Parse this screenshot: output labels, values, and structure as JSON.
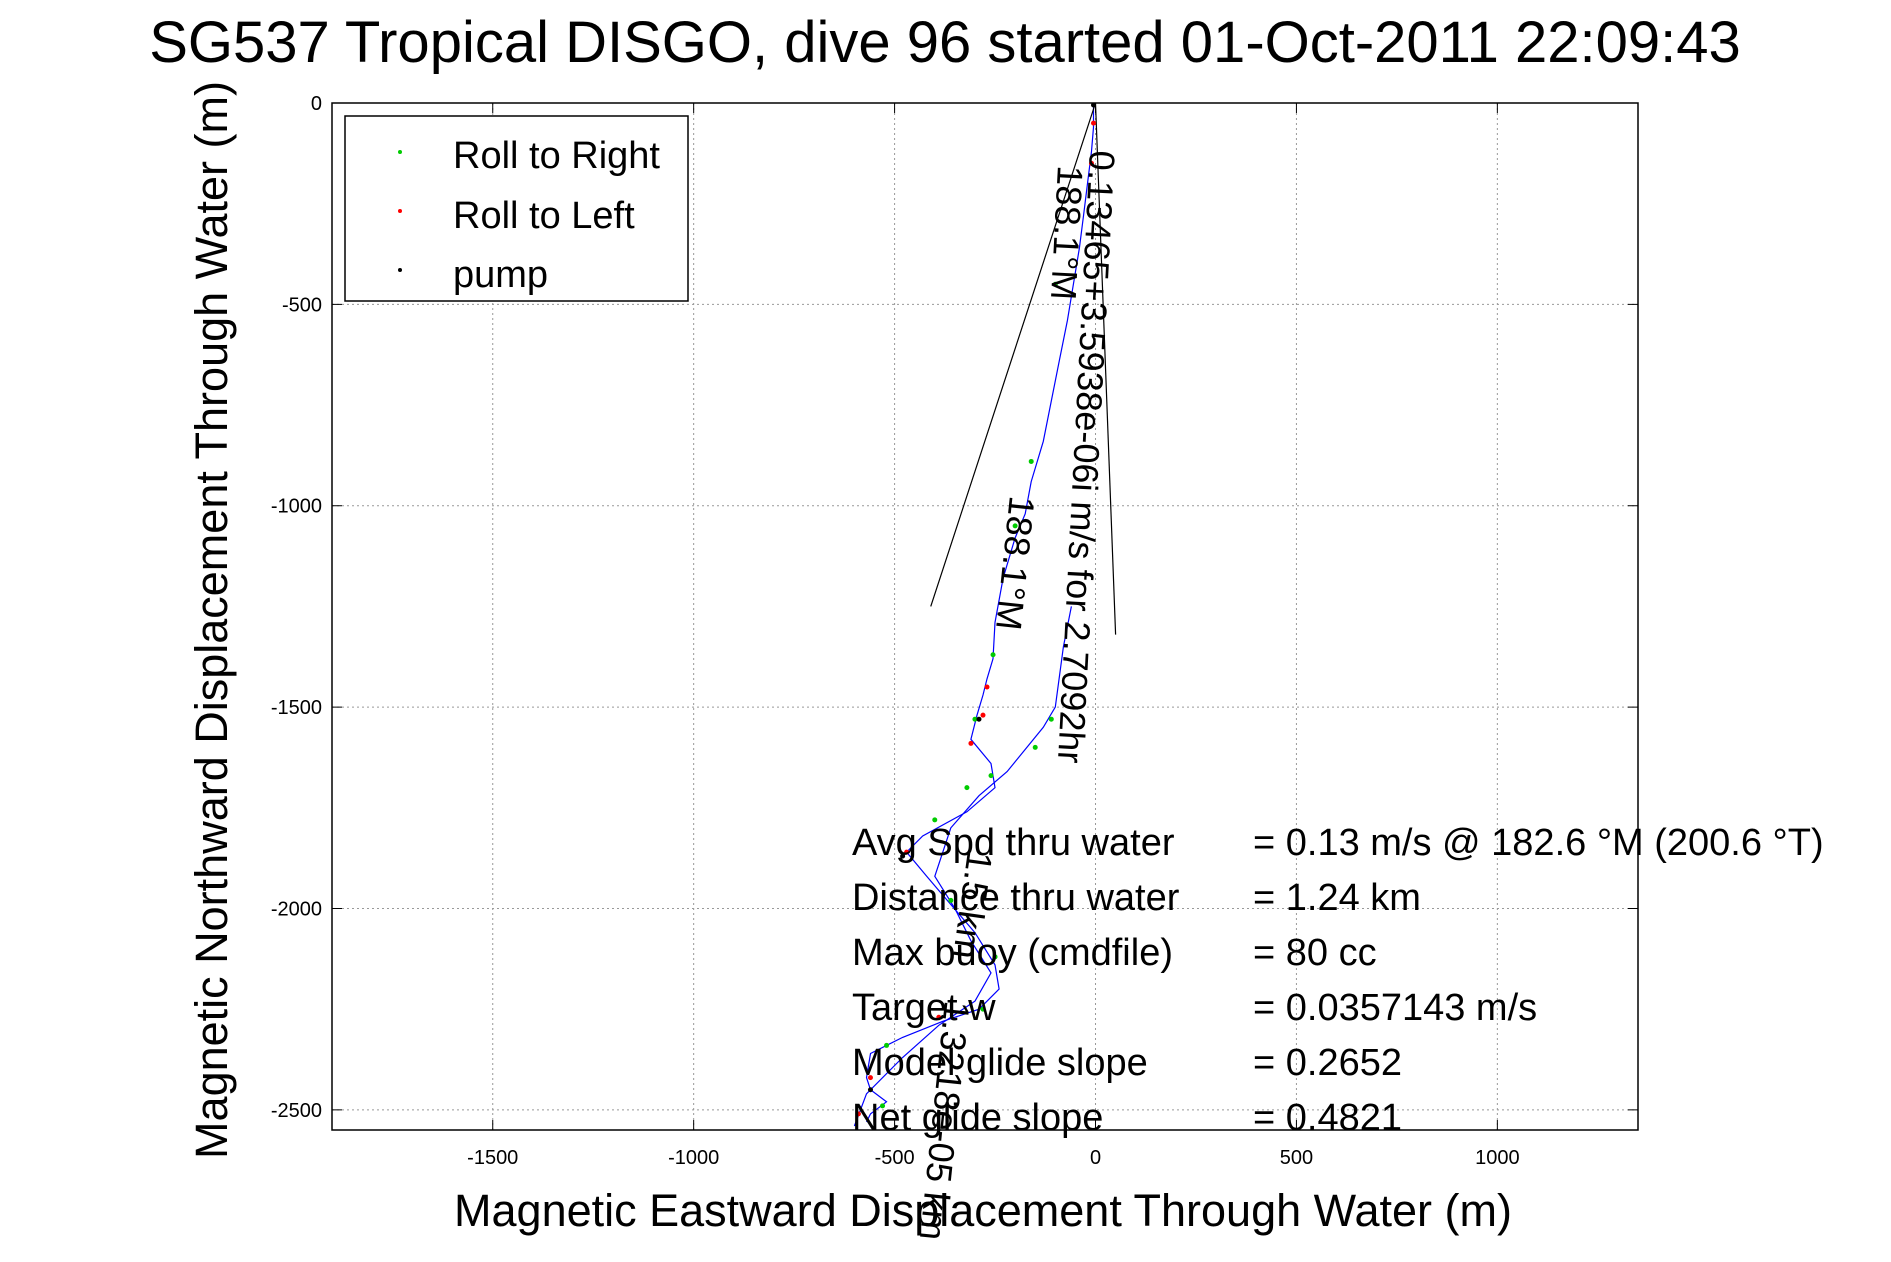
{
  "chart_data": {
    "type": "line",
    "title": "SG537 Tropical DISGO, dive 96 started 01-Oct-2011 22:09:43",
    "xlabel": "Magnetic Eastward Displacement Through Water (m)",
    "ylabel": "Magnetic Northward Displacement Through Water (m)",
    "xlim": [
      -1900,
      1350
    ],
    "ylim": [
      -2550,
      0
    ],
    "xticks": [
      -1500,
      -1000,
      -500,
      0,
      500,
      1000
    ],
    "yticks": [
      0,
      -500,
      -1000,
      -1500,
      -2000,
      -2500
    ],
    "grid": true,
    "legend_position": "top-left",
    "legend": [
      {
        "label": "Roll to Right",
        "color": "#00cc00"
      },
      {
        "label": "Roll to Left",
        "color": "#ff0000"
      },
      {
        "label": "pump",
        "color": "#000000"
      }
    ],
    "track_color": "#0000ff",
    "track": [
      [
        -5,
        -5
      ],
      [
        -5,
        -60
      ],
      [
        -10,
        -120
      ],
      [
        -20,
        -200
      ],
      [
        -30,
        -280
      ],
      [
        -40,
        -360
      ],
      [
        -55,
        -450
      ],
      [
        -70,
        -540
      ],
      [
        -90,
        -640
      ],
      [
        -110,
        -740
      ],
      [
        -130,
        -840
      ],
      [
        -160,
        -940
      ],
      [
        -175,
        -1020
      ],
      [
        -200,
        -1080
      ],
      [
        -230,
        -1180
      ],
      [
        -250,
        -1290
      ],
      [
        -255,
        -1380
      ],
      [
        -270,
        -1430
      ],
      [
        -280,
        -1470
      ],
      [
        -295,
        -1520
      ],
      [
        -310,
        -1580
      ],
      [
        -260,
        -1640
      ],
      [
        -250,
        -1700
      ],
      [
        -320,
        -1760
      ],
      [
        -430,
        -1820
      ],
      [
        -470,
        -1860
      ],
      [
        -420,
        -1920
      ],
      [
        -360,
        -1990
      ],
      [
        -300,
        -2060
      ],
      [
        -250,
        -2140
      ],
      [
        -240,
        -2200
      ],
      [
        -290,
        -2250
      ],
      [
        -380,
        -2280
      ],
      [
        -480,
        -2320
      ],
      [
        -560,
        -2360
      ],
      [
        -570,
        -2420
      ],
      [
        -560,
        -2450
      ],
      [
        -520,
        -2480
      ],
      [
        -560,
        -2510
      ],
      [
        -570,
        -2530
      ]
    ],
    "return_track": [
      [
        -600,
        -2540
      ],
      [
        -570,
        -2460
      ],
      [
        -480,
        -2370
      ],
      [
        -390,
        -2290
      ],
      [
        -300,
        -2230
      ],
      [
        -260,
        -2160
      ],
      [
        -310,
        -2080
      ],
      [
        -350,
        -2000
      ],
      [
        -400,
        -1920
      ],
      [
        -360,
        -1800
      ],
      [
        -290,
        -1720
      ],
      [
        -220,
        -1660
      ],
      [
        -130,
        -1550
      ],
      [
        -100,
        -1500
      ],
      [
        -80,
        -1350
      ],
      [
        -60,
        -1250
      ]
    ],
    "roll_right_points": [
      [
        -200,
        -1050
      ],
      [
        -160,
        -890
      ],
      [
        -100,
        -450
      ],
      [
        -255,
        -1370
      ],
      [
        -300,
        -1530
      ],
      [
        -260,
        -1670
      ],
      [
        -320,
        -1700
      ],
      [
        -400,
        -1780
      ],
      [
        -250,
        -2120
      ],
      [
        -280,
        -2250
      ],
      [
        -520,
        -2340
      ],
      [
        -530,
        -2490
      ],
      [
        -360,
        -1980
      ],
      [
        -150,
        -1600
      ],
      [
        -110,
        -1530
      ]
    ],
    "roll_left_points": [
      [
        -5,
        -50
      ],
      [
        -10,
        -150
      ],
      [
        -270,
        -1450
      ],
      [
        -310,
        -1590
      ],
      [
        -470,
        -1860
      ],
      [
        -390,
        -2270
      ],
      [
        -560,
        -2420
      ],
      [
        -590,
        -2510
      ],
      [
        -280,
        -1520
      ]
    ],
    "pump_points": [
      [
        -5,
        -5
      ],
      [
        -290,
        -1530
      ],
      [
        -480,
        -1870
      ],
      [
        -560,
        -2450
      ]
    ],
    "current_vector_lines": [
      [
        [
          0,
          0
        ],
        [
          -410,
          -1250
        ]
      ],
      [
        [
          0,
          0
        ],
        [
          50,
          -1320
        ]
      ]
    ],
    "current_labels": [
      "0.13465+3.5938e-06i m/s for 2.7092hr",
      "188.1°M",
      "188.1°M",
      "1.5 km",
      "1.3218e-05 km"
    ],
    "stats": [
      {
        "label": "Avg Spd thru water",
        "value": "=  0.13 m/s @ 182.6 °M (200.6 °T)"
      },
      {
        "label": "Distance thru water",
        "value": "=  1.24 km"
      },
      {
        "label": "Max buoy (cmdfile)",
        "value": "= 80 cc"
      },
      {
        "label": "Target w",
        "value": "= 0.0357143 m/s"
      },
      {
        "label": "Model glide slope",
        "value": "= 0.2652"
      },
      {
        "label": "Net glide slope",
        "value": "= 0.4821"
      }
    ]
  }
}
